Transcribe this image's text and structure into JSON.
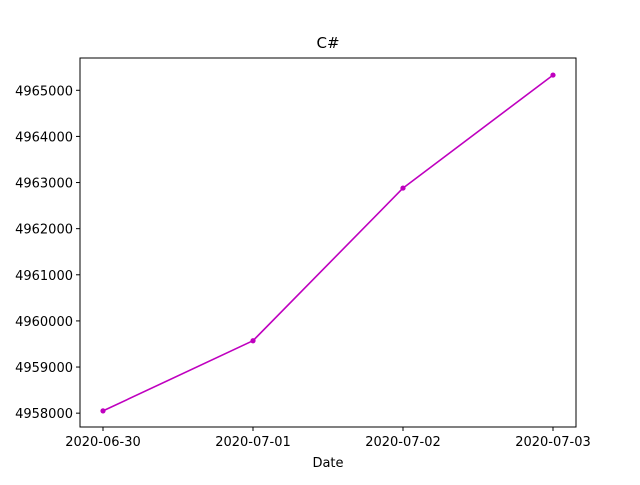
{
  "chart_data": {
    "type": "line",
    "title": "C#",
    "xlabel": "Date",
    "ylabel": "",
    "x": [
      "2020-06-30",
      "2020-07-01",
      "2020-07-02",
      "2020-07-03"
    ],
    "series": [
      {
        "color": "#bf00bf",
        "marker": "circle",
        "values": [
          4958050,
          4959570,
          4962880,
          4965330
        ]
      }
    ],
    "xticks": [
      "2020-06-30",
      "2020-07-01",
      "2020-07-02",
      "2020-07-03"
    ],
    "yticks": [
      4958000,
      4959000,
      4960000,
      4961000,
      4962000,
      4963000,
      4964000,
      4965000
    ],
    "ylim": [
      4957700,
      4965700
    ],
    "grid": false,
    "legend": "none"
  }
}
